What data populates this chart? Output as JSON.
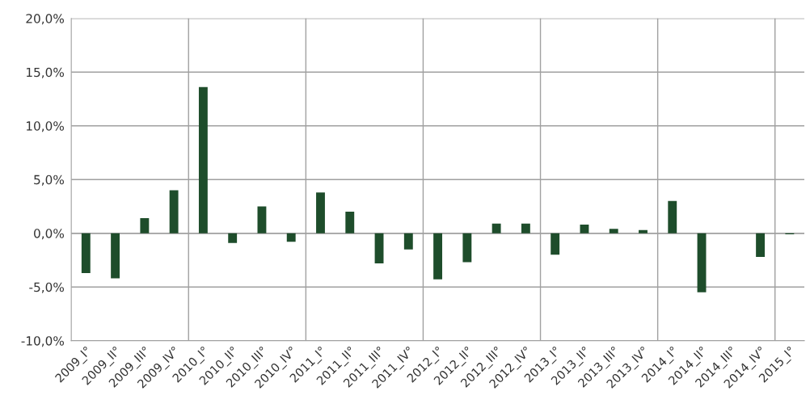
{
  "chart_data": {
    "type": "bar",
    "categories": [
      "2009_I°",
      "2009_II°",
      "2009_III°",
      "2009_IV°",
      "2010_I°",
      "2010_II°",
      "2010_III°",
      "2010_IV°",
      "2011_I°",
      "2011_II°",
      "2011_III°",
      "2011_IV°",
      "2012_I°",
      "2012_II°",
      "2012_III°",
      "2012_IV°",
      "2013_I°",
      "2013_II°",
      "2013_III°",
      "2013_IV°",
      "2014_I°",
      "2014_II°",
      "2014_III°",
      "2014_IV°",
      "2015_I°"
    ],
    "values": [
      -3.7,
      -4.2,
      1.4,
      4.0,
      13.6,
      -0.9,
      2.5,
      -0.8,
      3.8,
      2.0,
      -2.8,
      -1.5,
      -4.3,
      -2.7,
      0.9,
      0.9,
      -2.0,
      0.8,
      0.4,
      0.3,
      3.0,
      -5.5,
      0.0,
      -2.2,
      -0.1
    ],
    "color": "#1e4d2b",
    "ylim": [
      -10,
      20
    ],
    "yticks": [
      {
        "value": -10,
        "label": "-10,0%"
      },
      {
        "value": -5,
        "label": "-5,0%"
      },
      {
        "value": 0,
        "label": "0,0%"
      },
      {
        "value": 5,
        "label": "5,0%"
      },
      {
        "value": 10,
        "label": "10,0%"
      },
      {
        "value": 15,
        "label": "15,0%"
      },
      {
        "value": 20,
        "label": "20,0%"
      }
    ],
    "grid": true,
    "legend": false
  }
}
